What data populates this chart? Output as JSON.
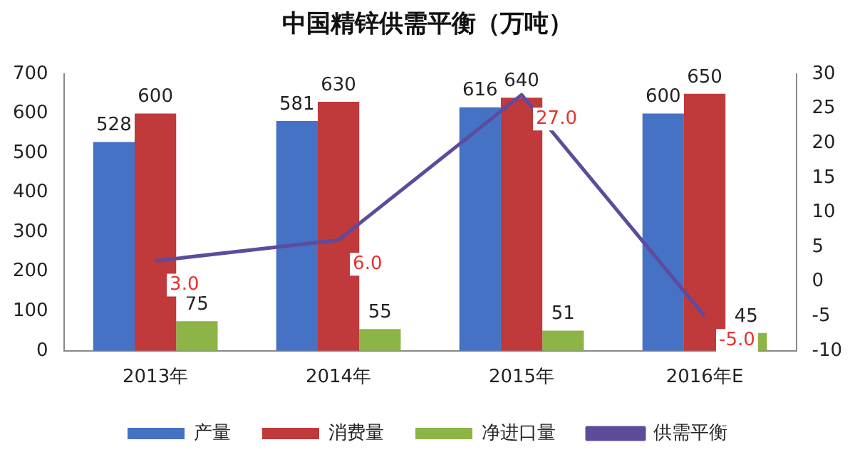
{
  "chart_data": {
    "type": "bar",
    "title": "中国精锌供需平衡（万吨）",
    "categories": [
      "2013年",
      "2014年",
      "2015年",
      "2016年E"
    ],
    "series": [
      {
        "name": "产量",
        "color": "#4572c4",
        "values": [
          528,
          581,
          616,
          600
        ],
        "value_labels": [
          "528",
          "581",
          "616",
          "600"
        ]
      },
      {
        "name": "消费量",
        "color": "#c0393b",
        "values": [
          600,
          630,
          640,
          650
        ],
        "value_labels": [
          "600",
          "630",
          "640",
          "650"
        ]
      },
      {
        "name": "净进口量",
        "color": "#8db447",
        "values": [
          75,
          55,
          51,
          45
        ],
        "value_labels": [
          "75",
          "55",
          "51",
          "45"
        ]
      },
      {
        "name": "供需平衡",
        "type": "line",
        "axis": "y2",
        "color": "#5e4b9c",
        "values": [
          3,
          6,
          27,
          -5
        ],
        "value_labels": [
          "3.0",
          "6.0",
          "27.0",
          "-5.0"
        ]
      }
    ],
    "ylim": [
      0,
      700
    ],
    "yticks": [
      0,
      100,
      200,
      300,
      400,
      500,
      600,
      700
    ],
    "y2lim": [
      -10,
      30
    ],
    "y2ticks": [
      -10,
      -5,
      0,
      5,
      10,
      15,
      20,
      25,
      30
    ],
    "grid": false,
    "legend": "bottom",
    "marker": "none",
    "line_style": "solid"
  }
}
